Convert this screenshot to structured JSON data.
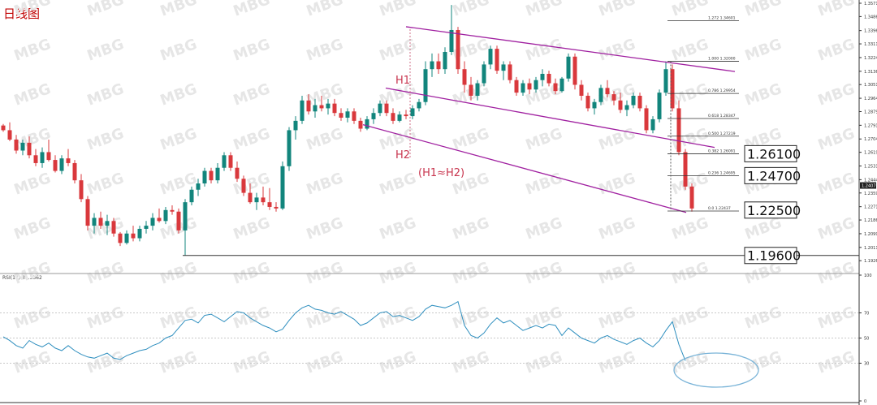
{
  "chart_data": [
    {
      "type": "candlestick",
      "title": "日线图",
      "ylim": [
        1.1855,
        1.3571
      ],
      "y_ticks": [
        "1.35710",
        "1.34860",
        "1.33965",
        "1.33115",
        "1.32240",
        "1.31365",
        "1.30515",
        "1.29640",
        "1.28790",
        "1.27915",
        "1.27040",
        "1.26190",
        "1.25315",
        "1.24440",
        "1.23590",
        "1.22715",
        "1.21865",
        "1.20990",
        "1.20115",
        "1.19265"
      ],
      "current_price_label": "1.2407",
      "channel_lines": [
        {
          "x": [
            500,
            905
          ],
          "y": [
            1.3421,
            1.3135
          ]
        },
        {
          "x": [
            475,
            880
          ],
          "y": [
            1.3029,
            1.265
          ]
        },
        {
          "x": [
            447,
            845
          ],
          "y": [
            1.2795,
            1.2235
          ]
        }
      ],
      "support_lines": [
        {
          "price": 1.196,
          "label": "1.19600"
        }
      ],
      "key_levels": [
        {
          "price": 1.261,
          "label": "1.26100"
        },
        {
          "price": 1.247,
          "label": "1.24700"
        },
        {
          "price": 1.225,
          "label": "1.22500"
        }
      ],
      "fibonacci": [
        {
          "ratio": "1.272",
          "price": "1.34601",
          "y": 1.346
        },
        {
          "ratio": "1.000",
          "price": "1.32000",
          "y": 1.32
        },
        {
          "ratio": "0.786",
          "price": "1.29954",
          "y": 1.2995
        },
        {
          "ratio": "0.618",
          "price": "1.28347",
          "y": 1.2835
        },
        {
          "ratio": "0.500",
          "price": "1.27219",
          "y": 1.2722
        },
        {
          "ratio": "0.382",
          "price": "1.26091",
          "y": 1.2609
        },
        {
          "ratio": "0.236",
          "price": "1.24695",
          "y": 1.247
        },
        {
          "ratio": "0.0",
          "price": "1.22437",
          "y": 1.2244
        }
      ],
      "annotations": [
        {
          "text": "H1",
          "kind": "height-marker"
        },
        {
          "text": "H2",
          "kind": "height-marker"
        },
        {
          "text": "(H1≈H2)",
          "kind": "note"
        }
      ],
      "candles": [
        {
          "x": 4,
          "o": 1.279,
          "h": 1.28,
          "l": 1.275,
          "c": 1.276
        },
        {
          "x": 12,
          "o": 1.276,
          "h": 1.281,
          "l": 1.269,
          "c": 1.27
        },
        {
          "x": 20,
          "o": 1.27,
          "h": 1.273,
          "l": 1.261,
          "c": 1.263
        },
        {
          "x": 28,
          "o": 1.263,
          "h": 1.27,
          "l": 1.26,
          "c": 1.268
        },
        {
          "x": 36,
          "o": 1.268,
          "h": 1.272,
          "l": 1.258,
          "c": 1.26
        },
        {
          "x": 44,
          "o": 1.26,
          "h": 1.264,
          "l": 1.253,
          "c": 1.255
        },
        {
          "x": 52,
          "o": 1.255,
          "h": 1.265,
          "l": 1.252,
          "c": 1.262
        },
        {
          "x": 60,
          "o": 1.262,
          "h": 1.27,
          "l": 1.256,
          "c": 1.257
        },
        {
          "x": 68,
          "o": 1.257,
          "h": 1.26,
          "l": 1.249,
          "c": 1.25
        },
        {
          "x": 76,
          "o": 1.25,
          "h": 1.26,
          "l": 1.248,
          "c": 1.258
        },
        {
          "x": 84,
          "o": 1.258,
          "h": 1.264,
          "l": 1.253,
          "c": 1.255
        },
        {
          "x": 92,
          "o": 1.255,
          "h": 1.257,
          "l": 1.242,
          "c": 1.244
        },
        {
          "x": 100,
          "o": 1.244,
          "h": 1.248,
          "l": 1.23,
          "c": 1.232
        },
        {
          "x": 108,
          "o": 1.232,
          "h": 1.234,
          "l": 1.212,
          "c": 1.215
        },
        {
          "x": 116,
          "o": 1.215,
          "h": 1.223,
          "l": 1.21,
          "c": 1.22
        },
        {
          "x": 124,
          "o": 1.22,
          "h": 1.224,
          "l": 1.213,
          "c": 1.215
        },
        {
          "x": 132,
          "o": 1.215,
          "h": 1.222,
          "l": 1.209,
          "c": 1.218
        },
        {
          "x": 140,
          "o": 1.218,
          "h": 1.22,
          "l": 1.208,
          "c": 1.21
        },
        {
          "x": 148,
          "o": 1.21,
          "h": 1.211,
          "l": 1.202,
          "c": 1.204
        },
        {
          "x": 156,
          "o": 1.204,
          "h": 1.212,
          "l": 1.203,
          "c": 1.21
        },
        {
          "x": 164,
          "o": 1.21,
          "h": 1.215,
          "l": 1.205,
          "c": 1.207
        },
        {
          "x": 172,
          "o": 1.207,
          "h": 1.215,
          "l": 1.205,
          "c": 1.213
        },
        {
          "x": 180,
          "o": 1.213,
          "h": 1.218,
          "l": 1.21,
          "c": 1.215
        },
        {
          "x": 188,
          "o": 1.215,
          "h": 1.223,
          "l": 1.212,
          "c": 1.22
        },
        {
          "x": 196,
          "o": 1.22,
          "h": 1.226,
          "l": 1.217,
          "c": 1.218
        },
        {
          "x": 204,
          "o": 1.218,
          "h": 1.227,
          "l": 1.216,
          "c": 1.225
        },
        {
          "x": 212,
          "o": 1.225,
          "h": 1.228,
          "l": 1.222,
          "c": 1.224
        },
        {
          "x": 220,
          "o": 1.224,
          "h": 1.226,
          "l": 1.21,
          "c": 1.212
        },
        {
          "x": 228,
          "o": 1.212,
          "h": 1.232,
          "l": 1.196,
          "c": 1.23
        },
        {
          "x": 236,
          "o": 1.23,
          "h": 1.24,
          "l": 1.228,
          "c": 1.238
        },
        {
          "x": 244,
          "o": 1.238,
          "h": 1.245,
          "l": 1.234,
          "c": 1.242
        },
        {
          "x": 252,
          "o": 1.242,
          "h": 1.252,
          "l": 1.24,
          "c": 1.25
        },
        {
          "x": 260,
          "o": 1.25,
          "h": 1.252,
          "l": 1.242,
          "c": 1.244
        },
        {
          "x": 268,
          "o": 1.244,
          "h": 1.255,
          "l": 1.242,
          "c": 1.252
        },
        {
          "x": 276,
          "o": 1.252,
          "h": 1.262,
          "l": 1.25,
          "c": 1.26
        },
        {
          "x": 284,
          "o": 1.26,
          "h": 1.262,
          "l": 1.25,
          "c": 1.252
        },
        {
          "x": 292,
          "o": 1.252,
          "h": 1.256,
          "l": 1.243,
          "c": 1.245
        },
        {
          "x": 300,
          "o": 1.245,
          "h": 1.247,
          "l": 1.234,
          "c": 1.236
        },
        {
          "x": 308,
          "o": 1.236,
          "h": 1.242,
          "l": 1.229,
          "c": 1.23
        },
        {
          "x": 316,
          "o": 1.23,
          "h": 1.236,
          "l": 1.225,
          "c": 1.233
        },
        {
          "x": 324,
          "o": 1.233,
          "h": 1.24,
          "l": 1.228,
          "c": 1.23
        },
        {
          "x": 332,
          "o": 1.23,
          "h": 1.239,
          "l": 1.225,
          "c": 1.227
        },
        {
          "x": 340,
          "o": 1.227,
          "h": 1.23,
          "l": 1.224,
          "c": 1.226
        },
        {
          "x": 348,
          "o": 1.226,
          "h": 1.256,
          "l": 1.225,
          "c": 1.253
        },
        {
          "x": 356,
          "o": 1.253,
          "h": 1.278,
          "l": 1.25,
          "c": 1.276
        },
        {
          "x": 364,
          "o": 1.276,
          "h": 1.285,
          "l": 1.27,
          "c": 1.282
        },
        {
          "x": 372,
          "o": 1.282,
          "h": 1.298,
          "l": 1.28,
          "c": 1.295
        },
        {
          "x": 380,
          "o": 1.295,
          "h": 1.299,
          "l": 1.286,
          "c": 1.288
        },
        {
          "x": 388,
          "o": 1.288,
          "h": 1.296,
          "l": 1.284,
          "c": 1.292
        },
        {
          "x": 396,
          "o": 1.292,
          "h": 1.298,
          "l": 1.288,
          "c": 1.29
        },
        {
          "x": 404,
          "o": 1.29,
          "h": 1.296,
          "l": 1.286,
          "c": 1.293
        },
        {
          "x": 412,
          "o": 1.293,
          "h": 1.296,
          "l": 1.285,
          "c": 1.287
        },
        {
          "x": 420,
          "o": 1.287,
          "h": 1.29,
          "l": 1.282,
          "c": 1.284
        },
        {
          "x": 428,
          "o": 1.284,
          "h": 1.29,
          "l": 1.281,
          "c": 1.288
        },
        {
          "x": 436,
          "o": 1.288,
          "h": 1.29,
          "l": 1.28,
          "c": 1.282
        },
        {
          "x": 444,
          "o": 1.282,
          "h": 1.284,
          "l": 1.275,
          "c": 1.277
        },
        {
          "x": 452,
          "o": 1.277,
          "h": 1.285,
          "l": 1.276,
          "c": 1.283
        },
        {
          "x": 460,
          "o": 1.283,
          "h": 1.29,
          "l": 1.28,
          "c": 1.287
        },
        {
          "x": 468,
          "o": 1.287,
          "h": 1.295,
          "l": 1.285,
          "c": 1.293
        },
        {
          "x": 476,
          "o": 1.293,
          "h": 1.295,
          "l": 1.285,
          "c": 1.287
        },
        {
          "x": 484,
          "o": 1.287,
          "h": 1.29,
          "l": 1.28,
          "c": 1.282
        },
        {
          "x": 492,
          "o": 1.282,
          "h": 1.288,
          "l": 1.281,
          "c": 1.286
        },
        {
          "x": 500,
          "o": 1.286,
          "h": 1.289,
          "l": 1.283,
          "c": 1.285
        },
        {
          "x": 508,
          "o": 1.285,
          "h": 1.292,
          "l": 1.283,
          "c": 1.29
        },
        {
          "x": 516,
          "o": 1.29,
          "h": 1.296,
          "l": 1.288,
          "c": 1.294
        },
        {
          "x": 524,
          "o": 1.294,
          "h": 1.32,
          "l": 1.292,
          "c": 1.315
        },
        {
          "x": 532,
          "o": 1.315,
          "h": 1.325,
          "l": 1.31,
          "c": 1.32
        },
        {
          "x": 540,
          "o": 1.32,
          "h": 1.325,
          "l": 1.312,
          "c": 1.315
        },
        {
          "x": 548,
          "o": 1.315,
          "h": 1.329,
          "l": 1.312,
          "c": 1.326
        },
        {
          "x": 556,
          "o": 1.326,
          "h": 1.356,
          "l": 1.324,
          "c": 1.34
        },
        {
          "x": 564,
          "o": 1.34,
          "h": 1.342,
          "l": 1.312,
          "c": 1.315
        },
        {
          "x": 572,
          "o": 1.315,
          "h": 1.32,
          "l": 1.3,
          "c": 1.305
        },
        {
          "x": 580,
          "o": 1.305,
          "h": 1.31,
          "l": 1.295,
          "c": 1.298
        },
        {
          "x": 588,
          "o": 1.298,
          "h": 1.308,
          "l": 1.295,
          "c": 1.306
        },
        {
          "x": 596,
          "o": 1.306,
          "h": 1.32,
          "l": 1.304,
          "c": 1.318
        },
        {
          "x": 604,
          "o": 1.318,
          "h": 1.33,
          "l": 1.315,
          "c": 1.328
        },
        {
          "x": 612,
          "o": 1.328,
          "h": 1.33,
          "l": 1.312,
          "c": 1.314
        },
        {
          "x": 620,
          "o": 1.314,
          "h": 1.32,
          "l": 1.308,
          "c": 1.318
        },
        {
          "x": 628,
          "o": 1.318,
          "h": 1.32,
          "l": 1.306,
          "c": 1.308
        },
        {
          "x": 636,
          "o": 1.308,
          "h": 1.31,
          "l": 1.298,
          "c": 1.3
        },
        {
          "x": 644,
          "o": 1.3,
          "h": 1.308,
          "l": 1.298,
          "c": 1.306
        },
        {
          "x": 652,
          "o": 1.306,
          "h": 1.309,
          "l": 1.299,
          "c": 1.302
        },
        {
          "x": 660,
          "o": 1.302,
          "h": 1.31,
          "l": 1.3,
          "c": 1.308
        },
        {
          "x": 668,
          "o": 1.308,
          "h": 1.315,
          "l": 1.304,
          "c": 1.312
        },
        {
          "x": 676,
          "o": 1.312,
          "h": 1.314,
          "l": 1.304,
          "c": 1.306
        },
        {
          "x": 684,
          "o": 1.306,
          "h": 1.309,
          "l": 1.299,
          "c": 1.301
        },
        {
          "x": 692,
          "o": 1.301,
          "h": 1.31,
          "l": 1.3,
          "c": 1.309
        },
        {
          "x": 700,
          "o": 1.309,
          "h": 1.325,
          "l": 1.307,
          "c": 1.323
        },
        {
          "x": 708,
          "o": 1.323,
          "h": 1.325,
          "l": 1.302,
          "c": 1.305
        },
        {
          "x": 716,
          "o": 1.305,
          "h": 1.308,
          "l": 1.295,
          "c": 1.298
        },
        {
          "x": 724,
          "o": 1.298,
          "h": 1.3,
          "l": 1.288,
          "c": 1.29
        },
        {
          "x": 732,
          "o": 1.29,
          "h": 1.296,
          "l": 1.286,
          "c": 1.294
        },
        {
          "x": 740,
          "o": 1.294,
          "h": 1.305,
          "l": 1.292,
          "c": 1.303
        },
        {
          "x": 748,
          "o": 1.303,
          "h": 1.308,
          "l": 1.297,
          "c": 1.299
        },
        {
          "x": 756,
          "o": 1.299,
          "h": 1.301,
          "l": 1.292,
          "c": 1.295
        },
        {
          "x": 764,
          "o": 1.295,
          "h": 1.3,
          "l": 1.287,
          "c": 1.289
        },
        {
          "x": 772,
          "o": 1.289,
          "h": 1.295,
          "l": 1.285,
          "c": 1.292
        },
        {
          "x": 780,
          "o": 1.292,
          "h": 1.3,
          "l": 1.29,
          "c": 1.298
        },
        {
          "x": 788,
          "o": 1.298,
          "h": 1.3,
          "l": 1.288,
          "c": 1.29
        },
        {
          "x": 796,
          "o": 1.29,
          "h": 1.292,
          "l": 1.274,
          "c": 1.276
        },
        {
          "x": 804,
          "o": 1.276,
          "h": 1.285,
          "l": 1.274,
          "c": 1.283
        },
        {
          "x": 812,
          "o": 1.283,
          "h": 1.302,
          "l": 1.281,
          "c": 1.3
        },
        {
          "x": 820,
          "o": 1.3,
          "h": 1.32,
          "l": 1.298,
          "c": 1.315
        },
        {
          "x": 828,
          "o": 1.315,
          "h": 1.318,
          "l": 1.288,
          "c": 1.29
        },
        {
          "x": 836,
          "o": 1.29,
          "h": 1.295,
          "l": 1.26,
          "c": 1.262
        },
        {
          "x": 844,
          "o": 1.262,
          "h": 1.264,
          "l": 1.238,
          "c": 1.24
        },
        {
          "x": 852,
          "o": 1.24,
          "h": 1.242,
          "l": 1.224,
          "c": 1.226
        }
      ]
    },
    {
      "type": "line",
      "title": "RSI(14) 31.3562",
      "ylim": [
        0,
        100
      ],
      "y_ticks": [
        "100",
        "70",
        "50",
        "30",
        "0"
      ],
      "levels": [
        70,
        50,
        30
      ],
      "x": [
        4,
        12,
        20,
        28,
        36,
        44,
        52,
        60,
        68,
        76,
        84,
        92,
        100,
        108,
        116,
        124,
        132,
        140,
        148,
        156,
        164,
        172,
        180,
        188,
        196,
        204,
        212,
        220,
        228,
        236,
        244,
        252,
        260,
        268,
        276,
        284,
        292,
        300,
        308,
        316,
        324,
        332,
        340,
        348,
        356,
        364,
        372,
        380,
        388,
        396,
        404,
        412,
        420,
        428,
        436,
        444,
        452,
        460,
        468,
        476,
        484,
        492,
        500,
        508,
        516,
        524,
        532,
        540,
        548,
        556,
        564,
        572,
        580,
        588,
        596,
        604,
        612,
        620,
        628,
        636,
        644,
        652,
        660,
        668,
        676,
        684,
        692,
        700,
        708,
        716,
        724,
        732,
        740,
        748,
        756,
        764,
        772,
        780,
        788,
        796,
        804,
        812,
        820,
        828,
        836,
        844
      ],
      "values": [
        51,
        48,
        44,
        42,
        48,
        45,
        43,
        46,
        42,
        40,
        44,
        40,
        37,
        35,
        34,
        36,
        38,
        34,
        33,
        36,
        38,
        40,
        41,
        44,
        46,
        50,
        52,
        58,
        64,
        65,
        62,
        68,
        69,
        66,
        63,
        67,
        71,
        70,
        66,
        63,
        60,
        58,
        55,
        57,
        64,
        70,
        74,
        76,
        73,
        72,
        70,
        69,
        71,
        68,
        65,
        60,
        62,
        66,
        70,
        71,
        67,
        68,
        66,
        64,
        67,
        73,
        76,
        75,
        74,
        76,
        79,
        60,
        52,
        50,
        54,
        61,
        66,
        62,
        64,
        60,
        56,
        58,
        60,
        58,
        61,
        60,
        52,
        58,
        54,
        50,
        48,
        46,
        50,
        52,
        49,
        47,
        45,
        48,
        50,
        46,
        43,
        48,
        56,
        63,
        45,
        32
      ]
    }
  ],
  "watermark": "MBG"
}
